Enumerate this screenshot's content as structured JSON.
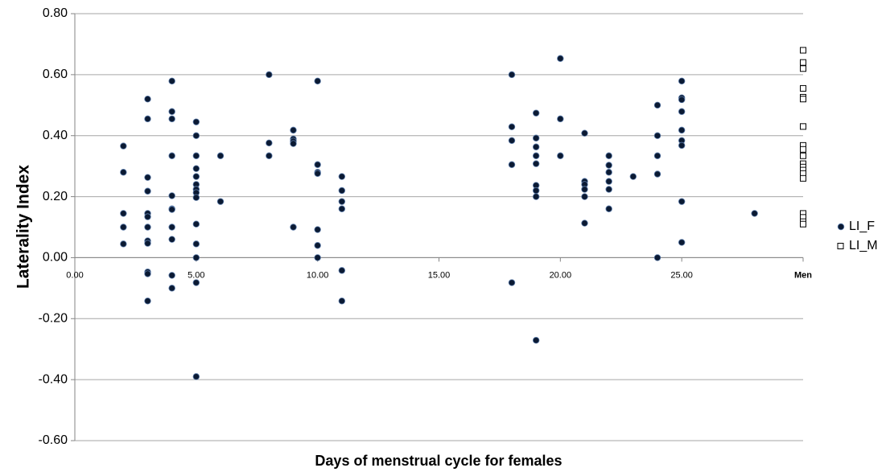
{
  "chart_data": {
    "type": "scatter",
    "x_label": "Days of menstrual cycle for females",
    "y_label": "Laterality Index",
    "xlim": [
      0,
      30
    ],
    "ylim": [
      -0.6,
      0.8
    ],
    "xticks": [
      {
        "value": 0,
        "label": "0.00"
      },
      {
        "value": 5,
        "label": "5.00"
      },
      {
        "value": 10,
        "label": "10.00"
      },
      {
        "value": 15,
        "label": "15.00"
      },
      {
        "value": 20,
        "label": "20.00"
      },
      {
        "value": 25,
        "label": "25.00"
      },
      {
        "value": 30,
        "label": "Men"
      }
    ],
    "yticks": [
      {
        "value": -0.6,
        "label": "-0.60"
      },
      {
        "value": -0.4,
        "label": "-0.40"
      },
      {
        "value": -0.2,
        "label": "-0.20"
      },
      {
        "value": 0,
        "label": "0.00"
      },
      {
        "value": 0.2,
        "label": "0.20"
      },
      {
        "value": 0.4,
        "label": "0.40"
      },
      {
        "value": 0.6,
        "label": "0.60"
      },
      {
        "value": 0.8,
        "label": "0.80"
      }
    ],
    "grid": true,
    "legend": "right",
    "series": [
      {
        "name": "LI_F",
        "color": "#0b1a33",
        "marker": "circle",
        "x": [
          2,
          2,
          2,
          2,
          2,
          3,
          3,
          3,
          3,
          3,
          3,
          3,
          3,
          3,
          3,
          3,
          3,
          4,
          4,
          4,
          4,
          4,
          4,
          4,
          4,
          4,
          4,
          4,
          5,
          5,
          5,
          5,
          5,
          5,
          5,
          5,
          5,
          5,
          5,
          5,
          5,
          5,
          6,
          6,
          8,
          8,
          8,
          9,
          9,
          9,
          9,
          9,
          10,
          10,
          10,
          10,
          10,
          10,
          10,
          11,
          11,
          11,
          11,
          11,
          11,
          18,
          18,
          18,
          18,
          18,
          19,
          19,
          19,
          19,
          19,
          19,
          19,
          19,
          19,
          20,
          20,
          20,
          21,
          21,
          21,
          21,
          21,
          21,
          22,
          22,
          22,
          22,
          22,
          22,
          23,
          24,
          24,
          24,
          24,
          24,
          25,
          25,
          25,
          25,
          25,
          25,
          25,
          25,
          25,
          28
        ],
        "values": [
          0.366,
          0.28,
          0.145,
          0.1,
          0.045,
          0.52,
          0.455,
          0.263,
          0.218,
          0.145,
          0.134,
          0.1,
          0.055,
          0.047,
          -0.047,
          -0.053,
          -0.142,
          0.579,
          0.479,
          0.455,
          0.334,
          0.203,
          0.16,
          0.158,
          0.1,
          0.06,
          -0.058,
          -0.1,
          0.445,
          0.4,
          0.334,
          0.292,
          0.266,
          0.24,
          0.224,
          0.213,
          0.197,
          0.11,
          0.045,
          0,
          -0.082,
          -0.39,
          0.334,
          0.184,
          0.6,
          0.376,
          0.334,
          0.418,
          0.389,
          0.382,
          0.374,
          0.1,
          0.579,
          0.305,
          0.28,
          0.276,
          0.092,
          0.04,
          0,
          0.266,
          0.22,
          0.184,
          0.16,
          -0.042,
          -0.142,
          0.6,
          0.429,
          0.384,
          0.305,
          -0.082,
          0.474,
          0.392,
          0.363,
          0.334,
          0.308,
          0.237,
          0.22,
          0.2,
          -0.271,
          0.653,
          0.455,
          0.334,
          0.408,
          0.25,
          0.24,
          0.224,
          0.2,
          0.113,
          0.334,
          0.303,
          0.28,
          0.25,
          0.224,
          0.16,
          0.266,
          0.5,
          0.4,
          0.334,
          0.274,
          0,
          0.579,
          0.524,
          0.518,
          0.479,
          0.418,
          0.384,
          0.368,
          0.184,
          0.05,
          0.145
        ]
      },
      {
        "name": "LI_M",
        "color": "#ffffff",
        "marker": "square",
        "x": [
          30,
          30,
          30,
          30,
          30,
          30,
          30,
          30,
          30,
          30,
          30,
          30,
          30,
          30,
          30,
          30,
          30,
          30,
          30
        ],
        "values": [
          0.68,
          0.64,
          0.62,
          0.555,
          0.526,
          0.52,
          0.43,
          0.368,
          0.355,
          0.334,
          0.308,
          0.297,
          0.287,
          0.276,
          0.26,
          0.145,
          0.132,
          0.118,
          0.11
        ]
      }
    ]
  }
}
